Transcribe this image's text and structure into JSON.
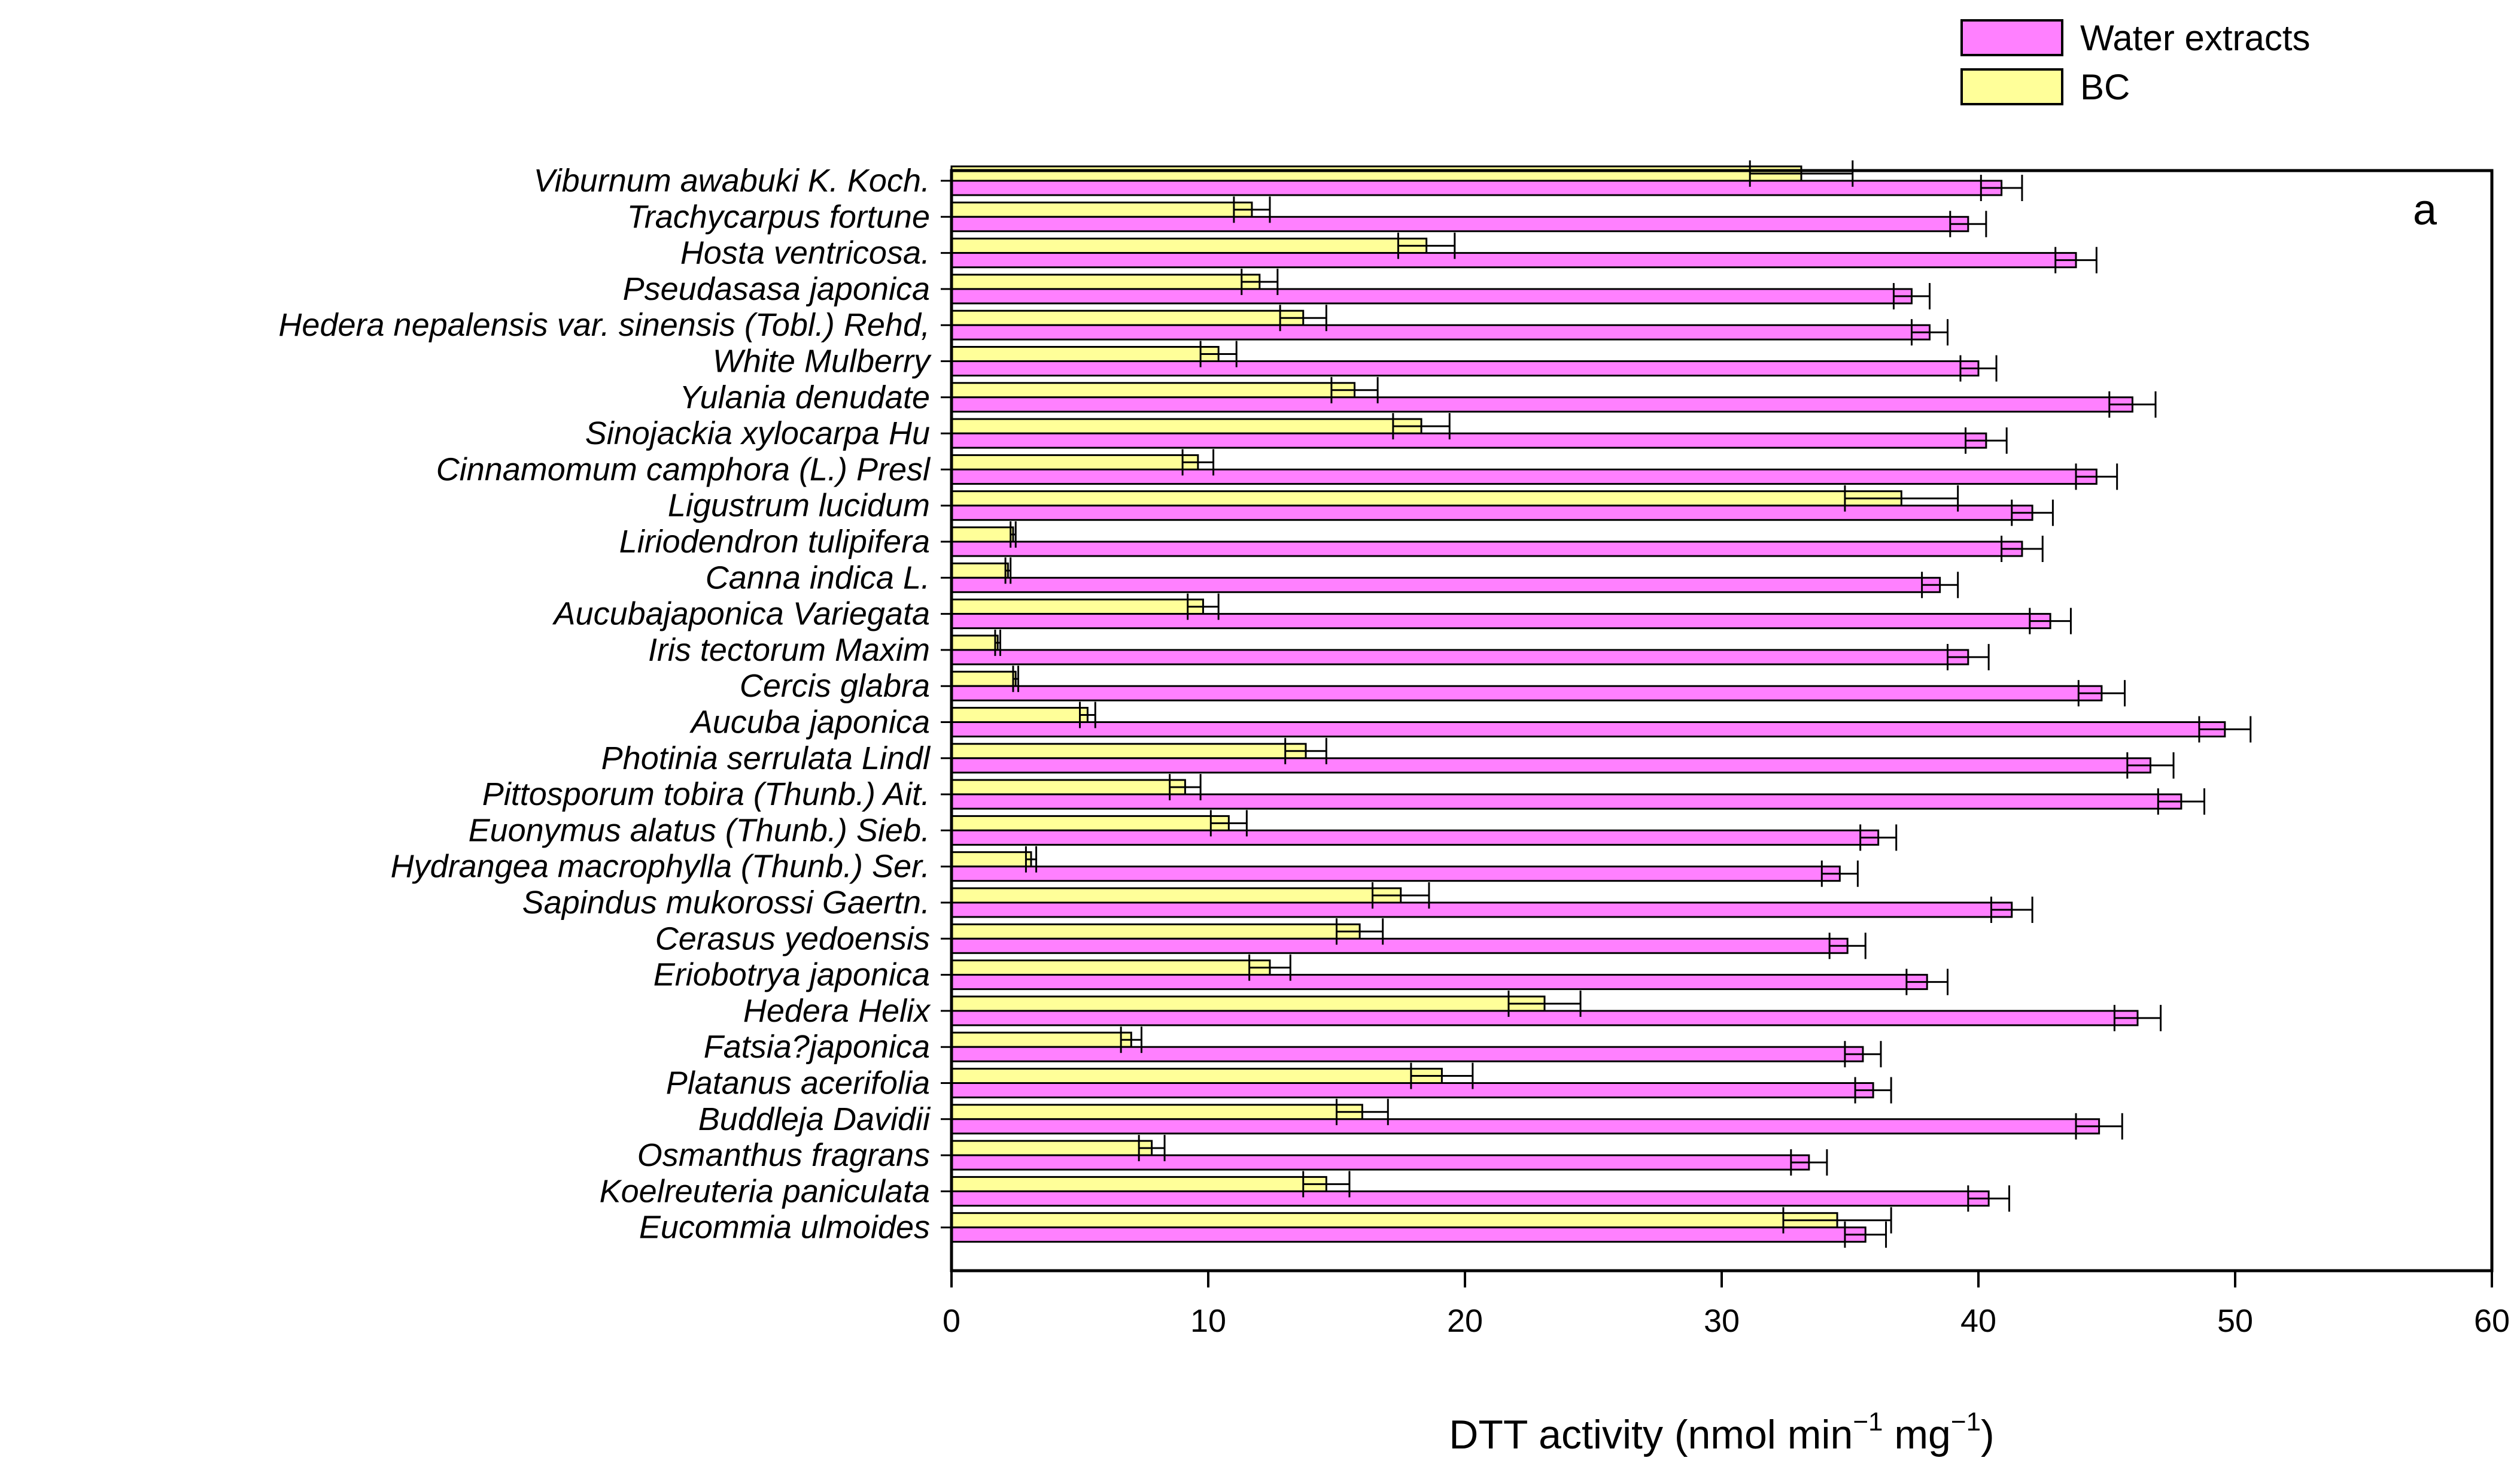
{
  "chart_data": {
    "type": "bar",
    "orientation": "horizontal",
    "panel_label": "a",
    "xlabel": {
      "prefix": "DTT activity (nmol min",
      "sup1": "−1",
      "mid": " mg",
      "sup2": "−1",
      "suffix": ")"
    },
    "xlim": [
      0,
      60
    ],
    "xticks": [
      "0",
      "10",
      "20",
      "30",
      "40",
      "50",
      "60"
    ],
    "legend": [
      {
        "name": "Water extracts",
        "color": "#ff80ff"
      },
      {
        "name": "BC",
        "color": "#ffff99"
      }
    ],
    "categories": [
      "Viburnum awabuki K. Koch.",
      "Trachycarpus fortune",
      "Hosta ventricosa.",
      "Pseudasasa japonica",
      "Hedera nepalensis var. sinensis (Tobl.) Rehd,",
      "White Mulberry",
      "Yulania denudate",
      "Sinojackia xylocarpa Hu",
      "Cinnamomum camphora (L.) Presl",
      "Ligustrum lucidum",
      "Liriodendron tulipifera",
      "Canna indica L.",
      "Aucubajaponica Variegata",
      "Iris tectorum Maxim",
      "Cercis glabra",
      "Aucuba japonica",
      "Photinia serrulata Lindl",
      "Pittosporum tobira (Thunb.) Ait.",
      "Euonymus alatus (Thunb.) Sieb.",
      "Hydrangea macrophylla (Thunb.) Ser.",
      "Sapindus mukorossi Gaertn.",
      "Cerasus yedoensis",
      "Eriobotrya japonica",
      "Hedera Helix",
      "Fatsia?japonica",
      "Platanus acerifolia",
      "Buddleja Davidii",
      "Osmanthus fragrans",
      "Koelreuteria paniculata",
      "Eucommia ulmoides"
    ],
    "series": [
      {
        "name": "Water extracts",
        "values": [
          40.9,
          39.6,
          43.8,
          37.4,
          38.1,
          40.0,
          46.0,
          40.3,
          44.6,
          42.1,
          41.7,
          38.5,
          42.8,
          39.6,
          44.8,
          49.6,
          46.7,
          47.9,
          36.1,
          34.6,
          41.3,
          34.9,
          38.0,
          46.2,
          35.5,
          35.9,
          44.7,
          33.4,
          40.4,
          35.6
        ],
        "errors": [
          0.8,
          0.7,
          0.8,
          0.7,
          0.7,
          0.7,
          0.9,
          0.8,
          0.8,
          0.8,
          0.8,
          0.7,
          0.8,
          0.8,
          0.9,
          1.0,
          0.9,
          0.9,
          0.7,
          0.7,
          0.8,
          0.7,
          0.8,
          0.9,
          0.7,
          0.7,
          0.9,
          0.7,
          0.8,
          0.8
        ]
      },
      {
        "name": "BC",
        "values": [
          33.1,
          11.7,
          18.5,
          12.0,
          13.7,
          10.4,
          15.7,
          18.3,
          9.6,
          37.0,
          2.4,
          2.2,
          9.8,
          1.8,
          2.5,
          5.3,
          13.8,
          9.1,
          10.8,
          3.1,
          17.5,
          15.9,
          12.4,
          23.1,
          7.0,
          19.1,
          16.0,
          7.8,
          14.6,
          34.5
        ],
        "errors": [
          2.0,
          0.7,
          1.1,
          0.7,
          0.9,
          0.7,
          0.9,
          1.1,
          0.6,
          2.2,
          0.1,
          0.1,
          0.6,
          0.1,
          0.1,
          0.3,
          0.8,
          0.6,
          0.7,
          0.2,
          1.1,
          0.9,
          0.8,
          1.4,
          0.4,
          1.2,
          1.0,
          0.5,
          0.9,
          2.1
        ]
      }
    ]
  }
}
